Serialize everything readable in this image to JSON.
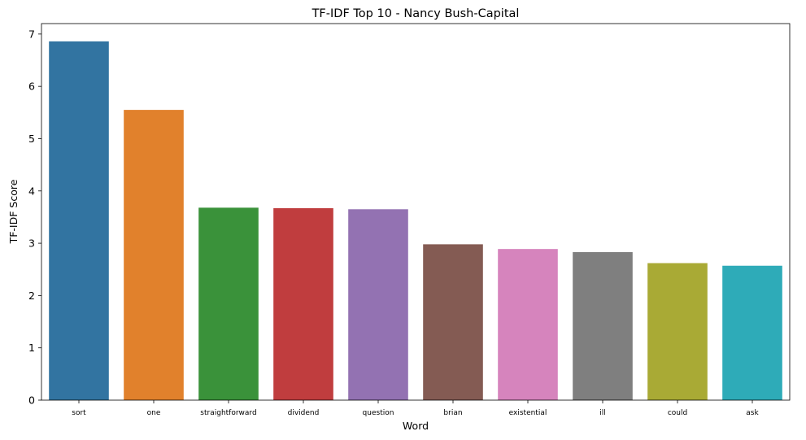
{
  "chart_data": {
    "type": "bar",
    "title": "TF-IDF Top 10 - Nancy Bush-Capital",
    "xlabel": "Word",
    "ylabel": "TF-IDF Score",
    "categories": [
      "sort",
      "one",
      "straightforward",
      "dividend",
      "question",
      "brian",
      "existential",
      "ill",
      "could",
      "ask"
    ],
    "values": [
      6.86,
      5.55,
      3.68,
      3.67,
      3.65,
      2.98,
      2.89,
      2.83,
      2.62,
      2.57
    ],
    "colors": [
      "#3274a1",
      "#e1812c",
      "#3a923a",
      "#c03d3e",
      "#9372b2",
      "#845b53",
      "#d684bd",
      "#7f7f7f",
      "#a9aa35",
      "#2eabb8"
    ],
    "yticks": [
      0,
      1,
      2,
      3,
      4,
      5,
      6,
      7
    ],
    "ylim": [
      0,
      7.2
    ],
    "grid": false,
    "legend": "none"
  }
}
